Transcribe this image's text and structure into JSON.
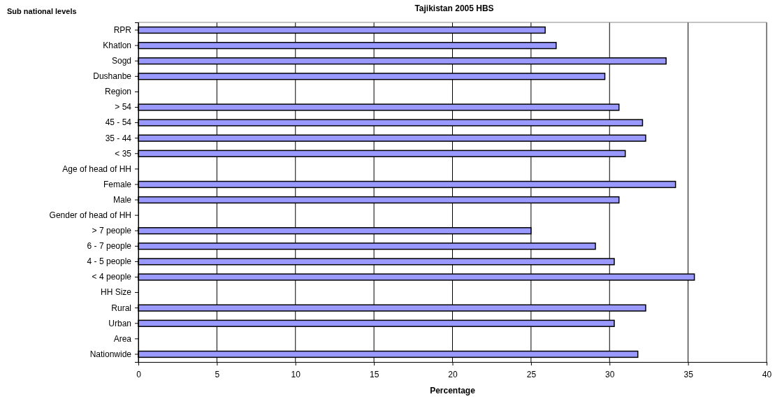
{
  "chart_data": {
    "type": "bar",
    "orientation": "horizontal",
    "title": "Tajikistan 2005 HBS",
    "annotations": [
      "Sub national levels"
    ],
    "xlabel": "Percentage",
    "categories": [
      "RPR",
      "Khatlon",
      "Sogd",
      "Dushanbe",
      "Region",
      "> 54",
      "45 - 54",
      "35 - 44",
      "< 35",
      "Age of head of HH",
      "Female",
      "Male",
      "Gender of head of HH",
      "> 7 people",
      "6 - 7 people",
      "4 - 5 people",
      "< 4 people",
      "HH Size",
      "Rural",
      "Urban",
      "Area",
      "Nationwide"
    ],
    "values": [
      25.9,
      26.6,
      33.6,
      29.7,
      null,
      30.6,
      32.1,
      32.3,
      31.0,
      null,
      34.2,
      30.6,
      null,
      25.0,
      29.1,
      30.3,
      35.4,
      null,
      32.3,
      30.3,
      null,
      31.8
    ],
    "color": "#9999ff",
    "xlim": [
      0,
      40
    ],
    "xticks": [
      0,
      5,
      10,
      15,
      20,
      25,
      30,
      35,
      40
    ],
    "grid": "x"
  }
}
